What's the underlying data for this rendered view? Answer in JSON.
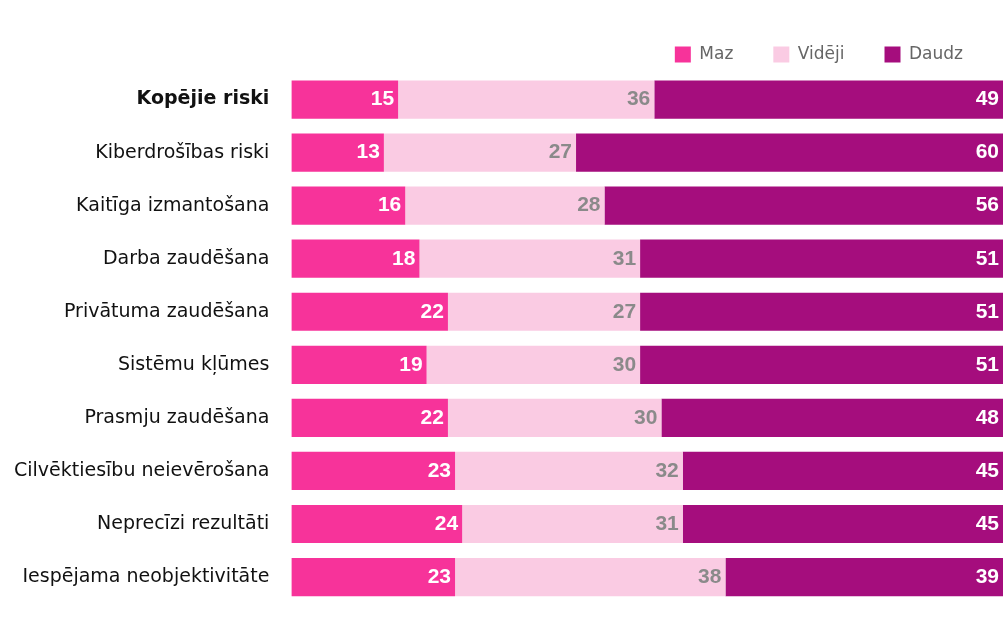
{
  "chart_data": {
    "type": "bar",
    "orientation": "horizontal",
    "stacked": true,
    "data_labels": true,
    "legend": "top right",
    "tick_labels": "y",
    "xlim": [
      0,
      100
    ],
    "categories": [
      "Kopējie riski",
      "Kiberdrošības riski",
      "Kaitīga izmantošana",
      "Darba zaudēšana",
      "Privātuma zaudēšana",
      "Sistēmu kļūmes",
      "Prasmju zaudēšana",
      "Cilvēktiesību neievērošana",
      "Neprecīzi rezultāti",
      "Iespējama neobjektivitāte"
    ],
    "series": [
      {
        "name": "Maz",
        "color": "#f7339a",
        "values": [
          15,
          13,
          16,
          18,
          22,
          19,
          22,
          23,
          24,
          23
        ]
      },
      {
        "name": "Vidēji",
        "color": "#facbe3",
        "values": [
          36,
          27,
          28,
          31,
          27,
          30,
          30,
          32,
          31,
          38
        ]
      },
      {
        "name": "Daudz",
        "color": "#a50d7d",
        "values": [
          49,
          60,
          56,
          51,
          51,
          51,
          48,
          45,
          45,
          39
        ]
      }
    ]
  }
}
